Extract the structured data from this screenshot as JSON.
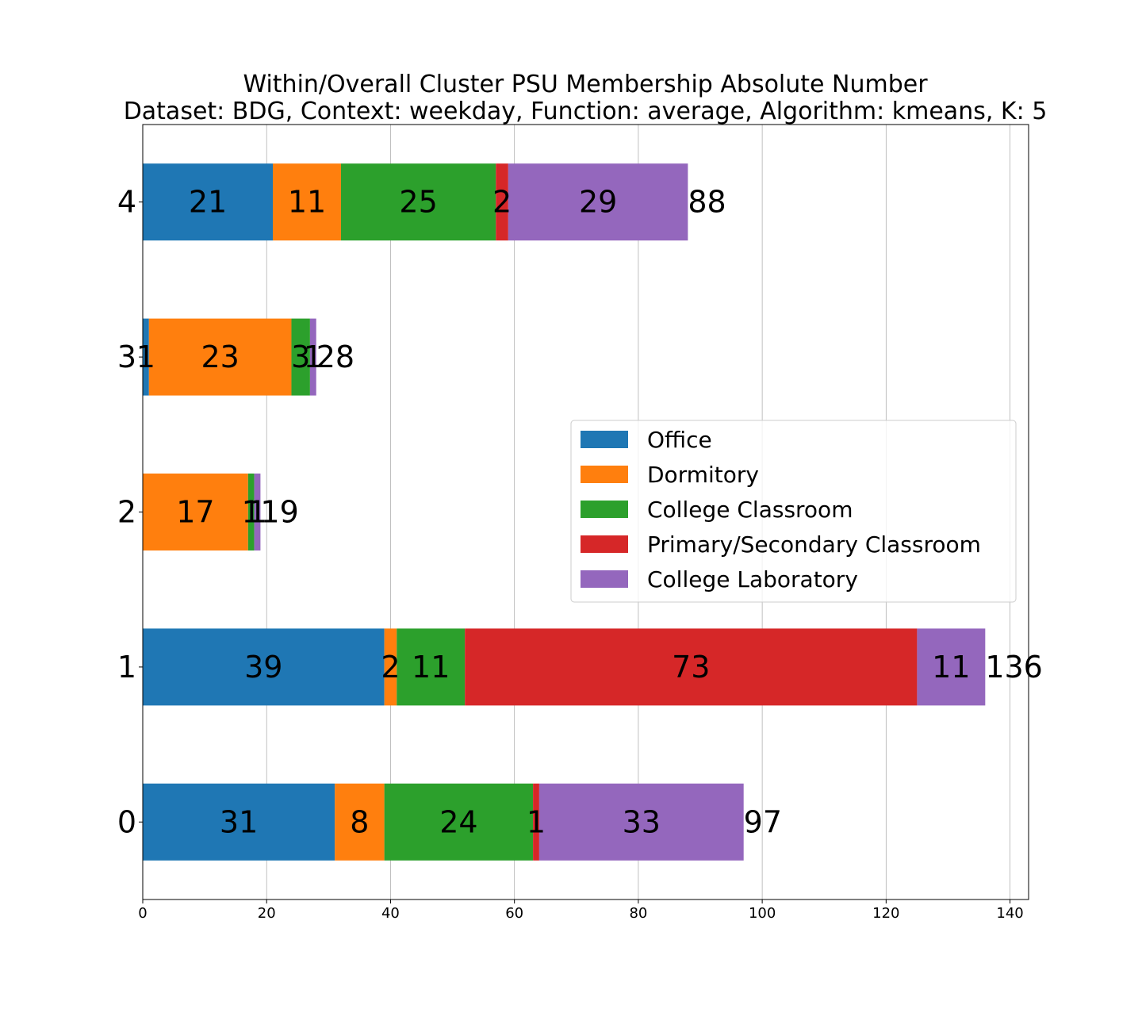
{
  "chart_data": {
    "type": "bar",
    "orientation": "horizontal",
    "stacked": true,
    "title": "Within/Overall Cluster PSU Membership Absolute Number",
    "subtitle": "Dataset: BDG, Context: weekday, Function: average, Algorithm: kmeans, K: 5",
    "xlabel": "",
    "ylabel": "",
    "categories": [
      "0",
      "1",
      "2",
      "3",
      "4"
    ],
    "xlim": [
      0,
      143
    ],
    "xticks": [
      0,
      20,
      40,
      60,
      80,
      100,
      120,
      140
    ],
    "grid": "vertical",
    "legend_position": "center-right",
    "series": [
      {
        "name": "Office",
        "color": "#1f77b4",
        "values": [
          31,
          39,
          0,
          1,
          21
        ]
      },
      {
        "name": "Dormitory",
        "color": "#ff7f0e",
        "values": [
          8,
          2,
          17,
          23,
          11
        ]
      },
      {
        "name": "College Classroom",
        "color": "#2ca02c",
        "values": [
          24,
          11,
          1,
          3,
          25
        ]
      },
      {
        "name": "Primary/Secondary Classroom",
        "color": "#d62728",
        "values": [
          1,
          73,
          0,
          0,
          2
        ]
      },
      {
        "name": "College Laboratory",
        "color": "#9467bd",
        "values": [
          33,
          11,
          1,
          1,
          29
        ]
      }
    ],
    "totals": [
      97,
      136,
      19,
      28,
      88
    ]
  }
}
